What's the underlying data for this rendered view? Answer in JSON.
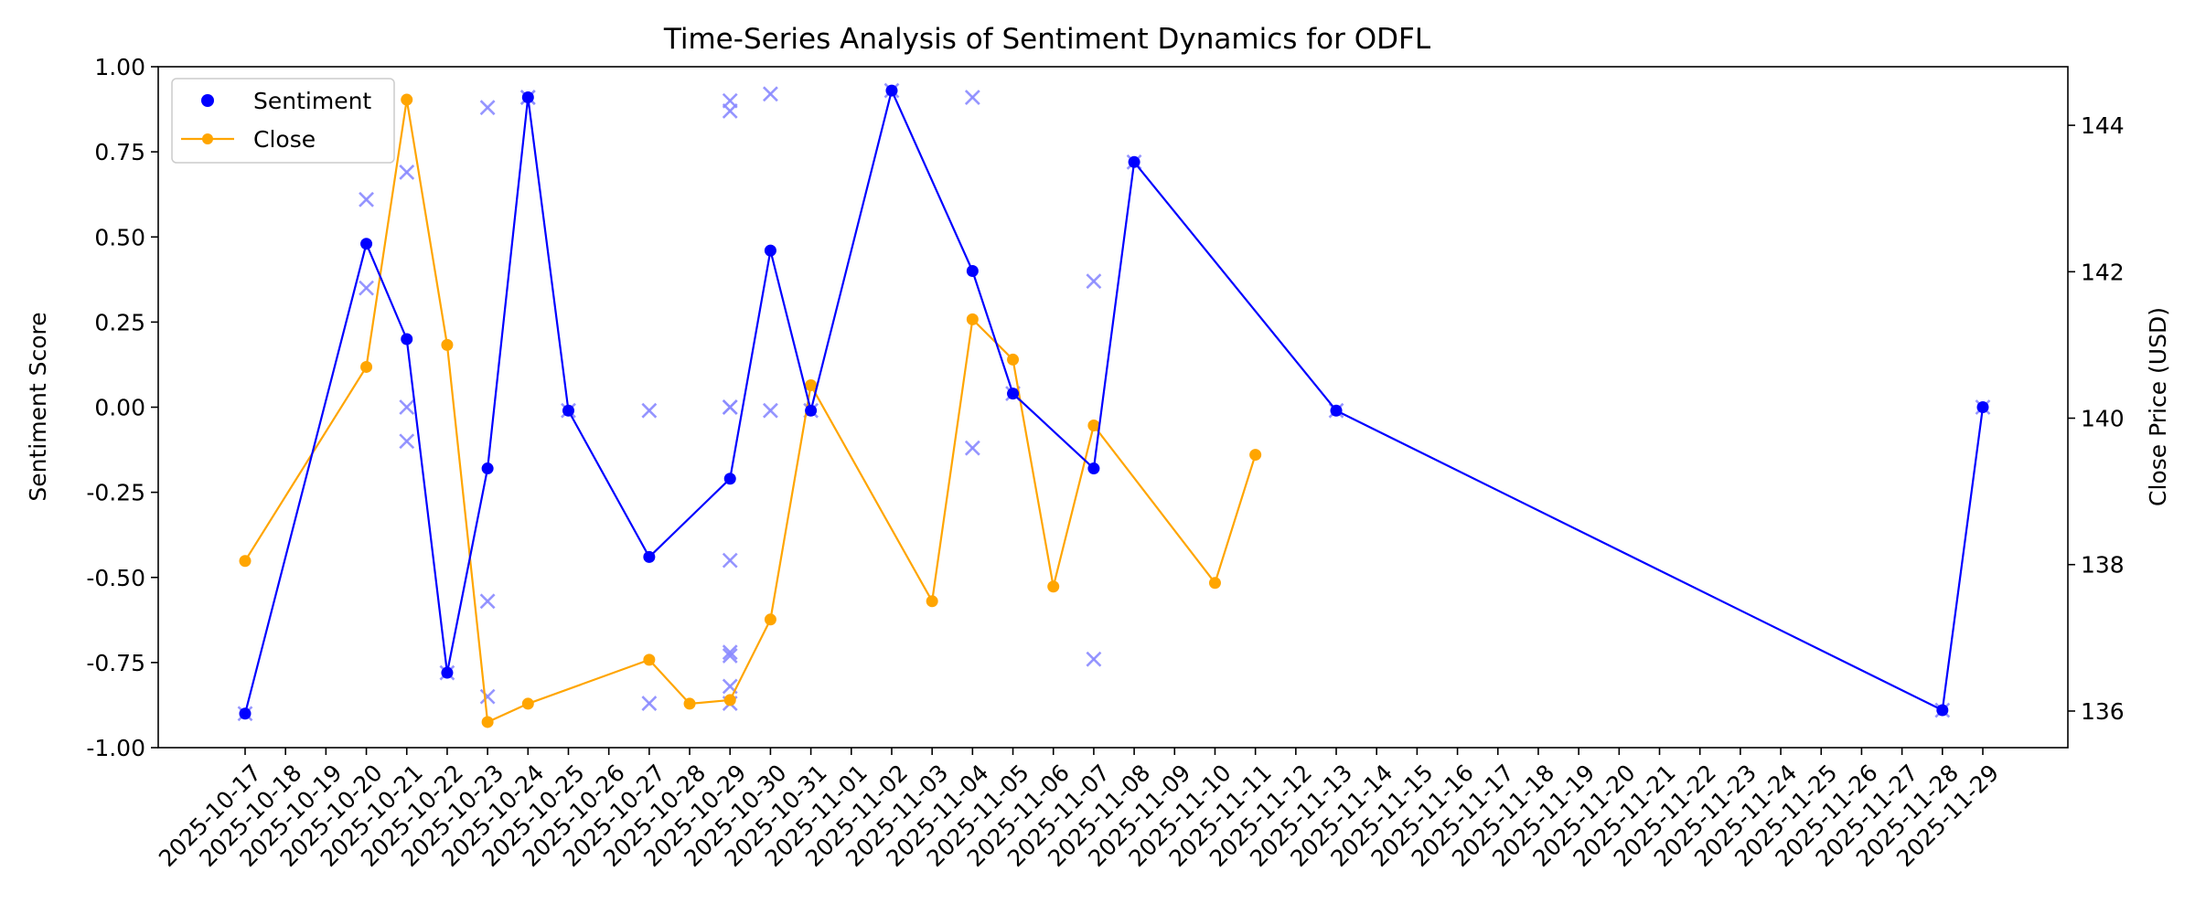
{
  "chart_data": {
    "type": "line",
    "title": "Time-Series Analysis of Sentiment Dynamics for ODFL",
    "xlabel": "",
    "ylabel": "Sentiment Score",
    "ylabel_right": "Close Price (USD)",
    "x_ticks": [
      "2025-10-17",
      "2025-10-18",
      "2025-10-19",
      "2025-10-20",
      "2025-10-21",
      "2025-10-22",
      "2025-10-23",
      "2025-10-24",
      "2025-10-25",
      "2025-10-26",
      "2025-10-27",
      "2025-10-28",
      "2025-10-29",
      "2025-10-30",
      "2025-10-31",
      "2025-11-01",
      "2025-11-02",
      "2025-11-03",
      "2025-11-04",
      "2025-11-05",
      "2025-11-06",
      "2025-11-07",
      "2025-11-08",
      "2025-11-09",
      "2025-11-10",
      "2025-11-11",
      "2025-11-12",
      "2025-11-13",
      "2025-11-14",
      "2025-11-15",
      "2025-11-16",
      "2025-11-17",
      "2025-11-18",
      "2025-11-19",
      "2025-11-20",
      "2025-11-21",
      "2025-11-22",
      "2025-11-23",
      "2025-11-24",
      "2025-11-25",
      "2025-11-26",
      "2025-11-27",
      "2025-11-28",
      "2025-11-29"
    ],
    "ylim_left": [
      -1.0,
      1.0
    ],
    "yticks_left": [
      "-1.00",
      "-0.75",
      "-0.50",
      "-0.25",
      "0.00",
      "0.25",
      "0.50",
      "0.75",
      "1.00"
    ],
    "ylim_right": [
      135.5,
      144.8
    ],
    "yticks_right": [
      "136",
      "138",
      "140",
      "142",
      "144"
    ],
    "legend_position": "upper-left",
    "grid": false,
    "series": [
      {
        "name": "Sentiment",
        "axis": "left",
        "color": "#0000ff",
        "style": "line-with-markers",
        "x": [
          "2025-10-17",
          "2025-10-20",
          "2025-10-21",
          "2025-10-22",
          "2025-10-23",
          "2025-10-24",
          "2025-10-25",
          "2025-10-27",
          "2025-10-29",
          "2025-10-30",
          "2025-10-31",
          "2025-11-02",
          "2025-11-04",
          "2025-11-05",
          "2025-11-07",
          "2025-11-08",
          "2025-11-13",
          "2025-11-28",
          "2025-11-29"
        ],
        "values": [
          -0.9,
          0.48,
          0.2,
          -0.78,
          -0.18,
          0.91,
          -0.01,
          -0.44,
          -0.21,
          0.46,
          -0.01,
          0.93,
          0.4,
          0.04,
          -0.18,
          0.72,
          -0.01,
          -0.89,
          0.0
        ]
      },
      {
        "name": "Close",
        "axis": "right",
        "color": "#ffa500",
        "style": "line-with-markers",
        "x": [
          "2025-10-17",
          "2025-10-20",
          "2025-10-21",
          "2025-10-22",
          "2025-10-23",
          "2025-10-24",
          "2025-10-27",
          "2025-10-28",
          "2025-10-29",
          "2025-10-30",
          "2025-10-31",
          "2025-11-03",
          "2025-11-04",
          "2025-11-05",
          "2025-11-06",
          "2025-11-07",
          "2025-11-10",
          "2025-11-11"
        ],
        "values": [
          138.05,
          140.7,
          144.35,
          141.0,
          135.85,
          136.1,
          136.7,
          136.1,
          136.15,
          137.25,
          140.45,
          137.5,
          141.35,
          140.8,
          137.7,
          139.9,
          137.75,
          139.5
        ]
      },
      {
        "axis": "left",
        "color": "#8a8aff",
        "style": "x-markers",
        "x": [
          "2025-10-17",
          "2025-10-20",
          "2025-10-20",
          "2025-10-21",
          "2025-10-21",
          "2025-10-21",
          "2025-10-22",
          "2025-10-23",
          "2025-10-23",
          "2025-10-23",
          "2025-10-24",
          "2025-10-24",
          "2025-10-25",
          "2025-10-27",
          "2025-10-27",
          "2025-10-29",
          "2025-10-29",
          "2025-10-29",
          "2025-10-29",
          "2025-10-29",
          "2025-10-29",
          "2025-10-29",
          "2025-10-29",
          "2025-10-29",
          "2025-10-30",
          "2025-10-30",
          "2025-10-31",
          "2025-11-02",
          "2025-11-04",
          "2025-11-04",
          "2025-11-05",
          "2025-11-07",
          "2025-11-07",
          "2025-11-08",
          "2025-11-13",
          "2025-11-28",
          "2025-11-29"
        ],
        "values": [
          -0.9,
          0.61,
          0.35,
          0.69,
          0.0,
          -0.1,
          -0.78,
          0.88,
          -0.57,
          -0.85,
          0.91,
          0.91,
          -0.01,
          -0.01,
          -0.87,
          0.9,
          0.87,
          0.0,
          0.0,
          -0.45,
          -0.72,
          -0.73,
          -0.82,
          -0.87,
          0.92,
          -0.01,
          -0.01,
          0.93,
          0.91,
          -0.12,
          0.04,
          0.37,
          -0.74,
          0.72,
          -0.01,
          -0.89,
          0.0
        ]
      }
    ]
  }
}
